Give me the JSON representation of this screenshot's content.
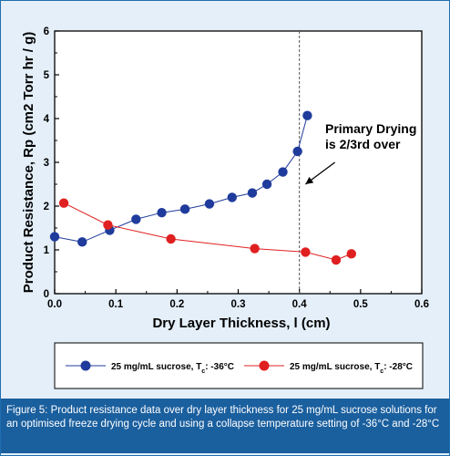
{
  "chart_data": {
    "type": "scatter",
    "xlabel": "Dry Layer Thickness, l (cm)",
    "ylabel": "Product Resistance, Rp (cm2 Torr hr / g)",
    "xlim": [
      0.0,
      0.6
    ],
    "ylim": [
      0,
      6
    ],
    "x_ticks": [
      "0.0",
      "0.1",
      "0.2",
      "0.3",
      "0.4",
      "0.5",
      "0.6"
    ],
    "y_ticks": [
      "0",
      "1",
      "2",
      "3",
      "4",
      "5",
      "6"
    ],
    "grid": false,
    "legend_position": "bottom",
    "series": [
      {
        "name": "25 mg/mL sucrose, Tc: -36°C",
        "legend_main": "25 mg/mL sucrose, T",
        "legend_sub": "c",
        "legend_tail": ": -36°C",
        "color": "#1f3b9c",
        "x": [
          0.0,
          0.045,
          0.09,
          0.133,
          0.175,
          0.213,
          0.253,
          0.29,
          0.323,
          0.347,
          0.373,
          0.397,
          0.413
        ],
        "y": [
          1.3,
          1.18,
          1.45,
          1.7,
          1.85,
          1.93,
          2.05,
          2.2,
          2.3,
          2.5,
          2.78,
          3.25,
          4.07
        ]
      },
      {
        "name": "25 mg/mL sucrose, Tc: -28°C",
        "legend_main": "25 mg/mL sucrose, T",
        "legend_sub": "c",
        "legend_tail": ": -28°C",
        "color": "#e02020",
        "x": [
          0.015,
          0.087,
          0.19,
          0.327,
          0.41,
          0.46,
          0.485
        ],
        "y": [
          2.07,
          1.57,
          1.25,
          1.03,
          0.95,
          0.77,
          0.91
        ]
      }
    ],
    "reference_line": {
      "x": 0.4,
      "style": "dashed"
    },
    "annotation": {
      "line1": "Primary Drying",
      "line2": "is 2/3rd over",
      "arrow_from": {
        "x": 0.458,
        "y": 3.0
      },
      "arrow_to": {
        "x": 0.41,
        "y": 2.5
      }
    }
  },
  "caption": "Figure 5: Product resistance data over dry layer thickness for 25 mg/mL sucrose solutions for an optimised freeze drying cycle and using a collapse temperature setting of -36°C and -28°C"
}
